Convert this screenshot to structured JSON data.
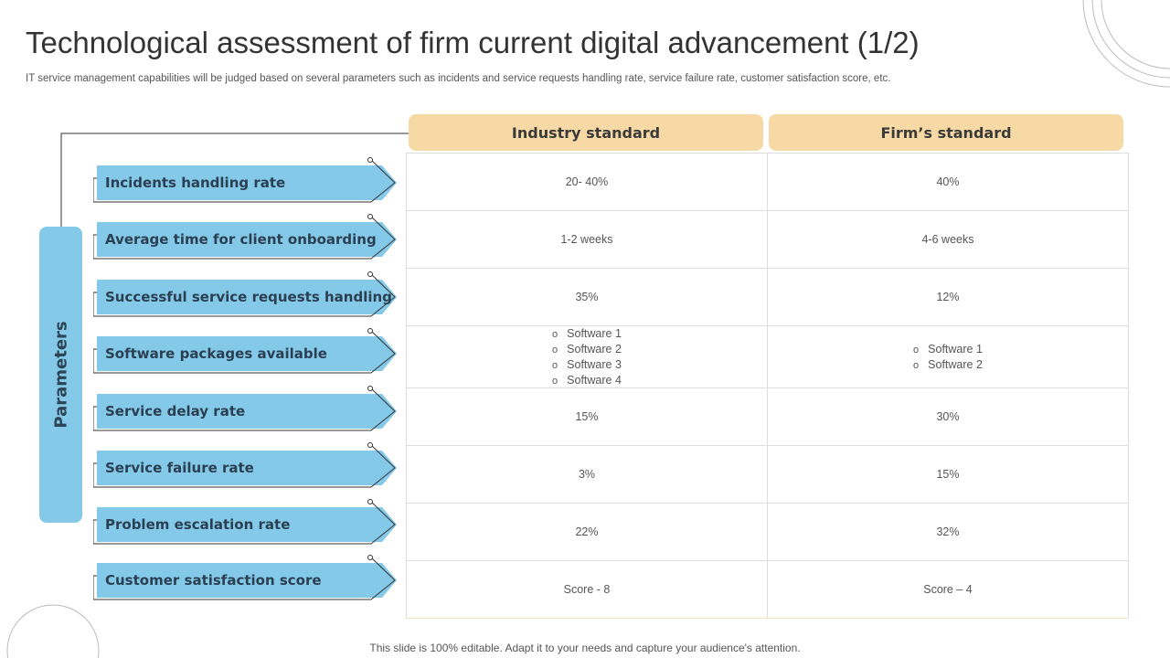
{
  "title": "Technological assessment of firm current digital advancement (1/2)",
  "subtitle": "IT service management capabilities will be judged based on several parameters such as incidents and service requests handling rate, service failure rate, customer satisfaction score, etc.",
  "footer": "This slide is 100% editable. Adapt it to your needs and capture your audience's attention.",
  "side_label": "Parameters",
  "headers": [
    "Industry standard",
    "Firm’s standard"
  ],
  "colors": {
    "arrow": "#84c9e8",
    "header": "#f6d9a4",
    "text": "#2b3f52"
  },
  "rows": [
    {
      "parameter": "Incidents handling  rate",
      "industry": "20- 40%",
      "firm": "40%"
    },
    {
      "parameter": "Average time for client onboarding",
      "industry": "1-2 weeks",
      "firm": "4-6 weeks"
    },
    {
      "parameter": "Successful service requests handling",
      "industry": "35%",
      "firm": "12%"
    },
    {
      "parameter": "Software packages available",
      "industry_list": [
        "Software  1",
        "Software  2",
        "Software  3",
        "Software  4"
      ],
      "firm_list": [
        "Software  1",
        "Software  2"
      ]
    },
    {
      "parameter": "Service delay rate",
      "industry": "15%",
      "firm": "30%"
    },
    {
      "parameter": "Service failure  rate",
      "industry": "3%",
      "firm": "15%"
    },
    {
      "parameter": "Problem escalation rate",
      "industry": "22%",
      "firm": "32%"
    },
    {
      "parameter": "Customer satisfaction score",
      "industry": "Score - 8",
      "firm": "Score – 4"
    }
  ]
}
